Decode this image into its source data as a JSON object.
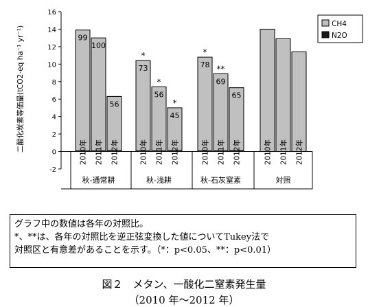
{
  "chart_data": {
    "type": "bar",
    "ylabel": "二酸化炭素等価量(tCO2-eq ha⁻¹ yr⁻¹)",
    "ylim": [
      -2,
      16
    ],
    "yticks": [
      "-2",
      "0",
      "2",
      "4",
      "6",
      "8",
      "10",
      "12",
      "14",
      "16"
    ],
    "legend": {
      "position": "top-right",
      "entries": [
        "CH4",
        "N2O"
      ]
    },
    "groups": [
      {
        "label": "秋-通常耕",
        "bars": [
          {
            "year": "2010年",
            "ch4": 13.9,
            "n2o": 0.05,
            "ratio": "99",
            "sig": ""
          },
          {
            "year": "2011年",
            "ch4": 13.0,
            "n2o": 0.05,
            "ratio": "100",
            "sig": ""
          },
          {
            "year": "2012年",
            "ch4": 6.3,
            "n2o": 0.15,
            "ratio": "56",
            "sig": ""
          }
        ]
      },
      {
        "label": "秋-浅耕",
        "bars": [
          {
            "year": "2010年",
            "ch4": 10.4,
            "n2o": 0.05,
            "ratio": "73",
            "sig": "*"
          },
          {
            "year": "2011年",
            "ch4": 7.4,
            "n2o": 0.05,
            "ratio": "56",
            "sig": "*"
          },
          {
            "year": "2012年",
            "ch4": 5.0,
            "n2o": 0.15,
            "ratio": "45",
            "sig": "*"
          }
        ]
      },
      {
        "label": "秋-石灰窒素",
        "bars": [
          {
            "year": "2010年",
            "ch4": 10.8,
            "n2o": 0.05,
            "ratio": "78",
            "sig": "*"
          },
          {
            "year": "2011年",
            "ch4": 8.9,
            "n2o": 0.05,
            "ratio": "69",
            "sig": "**"
          },
          {
            "year": "2012年",
            "ch4": 7.3,
            "n2o": 0.15,
            "ratio": "65",
            "sig": ""
          }
        ]
      },
      {
        "label": "対照",
        "bars": [
          {
            "year": "2010年",
            "ch4": 14.0,
            "n2o": 0.0,
            "ratio": "",
            "sig": ""
          },
          {
            "year": "2011年",
            "ch4": 12.9,
            "n2o": 0.0,
            "ratio": "",
            "sig": ""
          },
          {
            "year": "2012年",
            "ch4": 11.4,
            "n2o": 0.0,
            "ratio": "",
            "sig": ""
          }
        ]
      }
    ]
  },
  "colors": {
    "ch4": "#c0c0c0",
    "n2o": "#1a1a1a",
    "axis": "#000000"
  },
  "note": {
    "line1": "グラフ中の数値は各年の対照比。",
    "line2": "*、**は、各年の対照比を逆正弦変換した値についてTukey法で",
    "line3": "対照区と有意差があることを示す。（*：p<0.05、**：p<0.01）"
  },
  "caption": {
    "title": "図２　メタン、一酸化二窒素発生量",
    "subtitle": "（2010 年～2012 年）"
  }
}
